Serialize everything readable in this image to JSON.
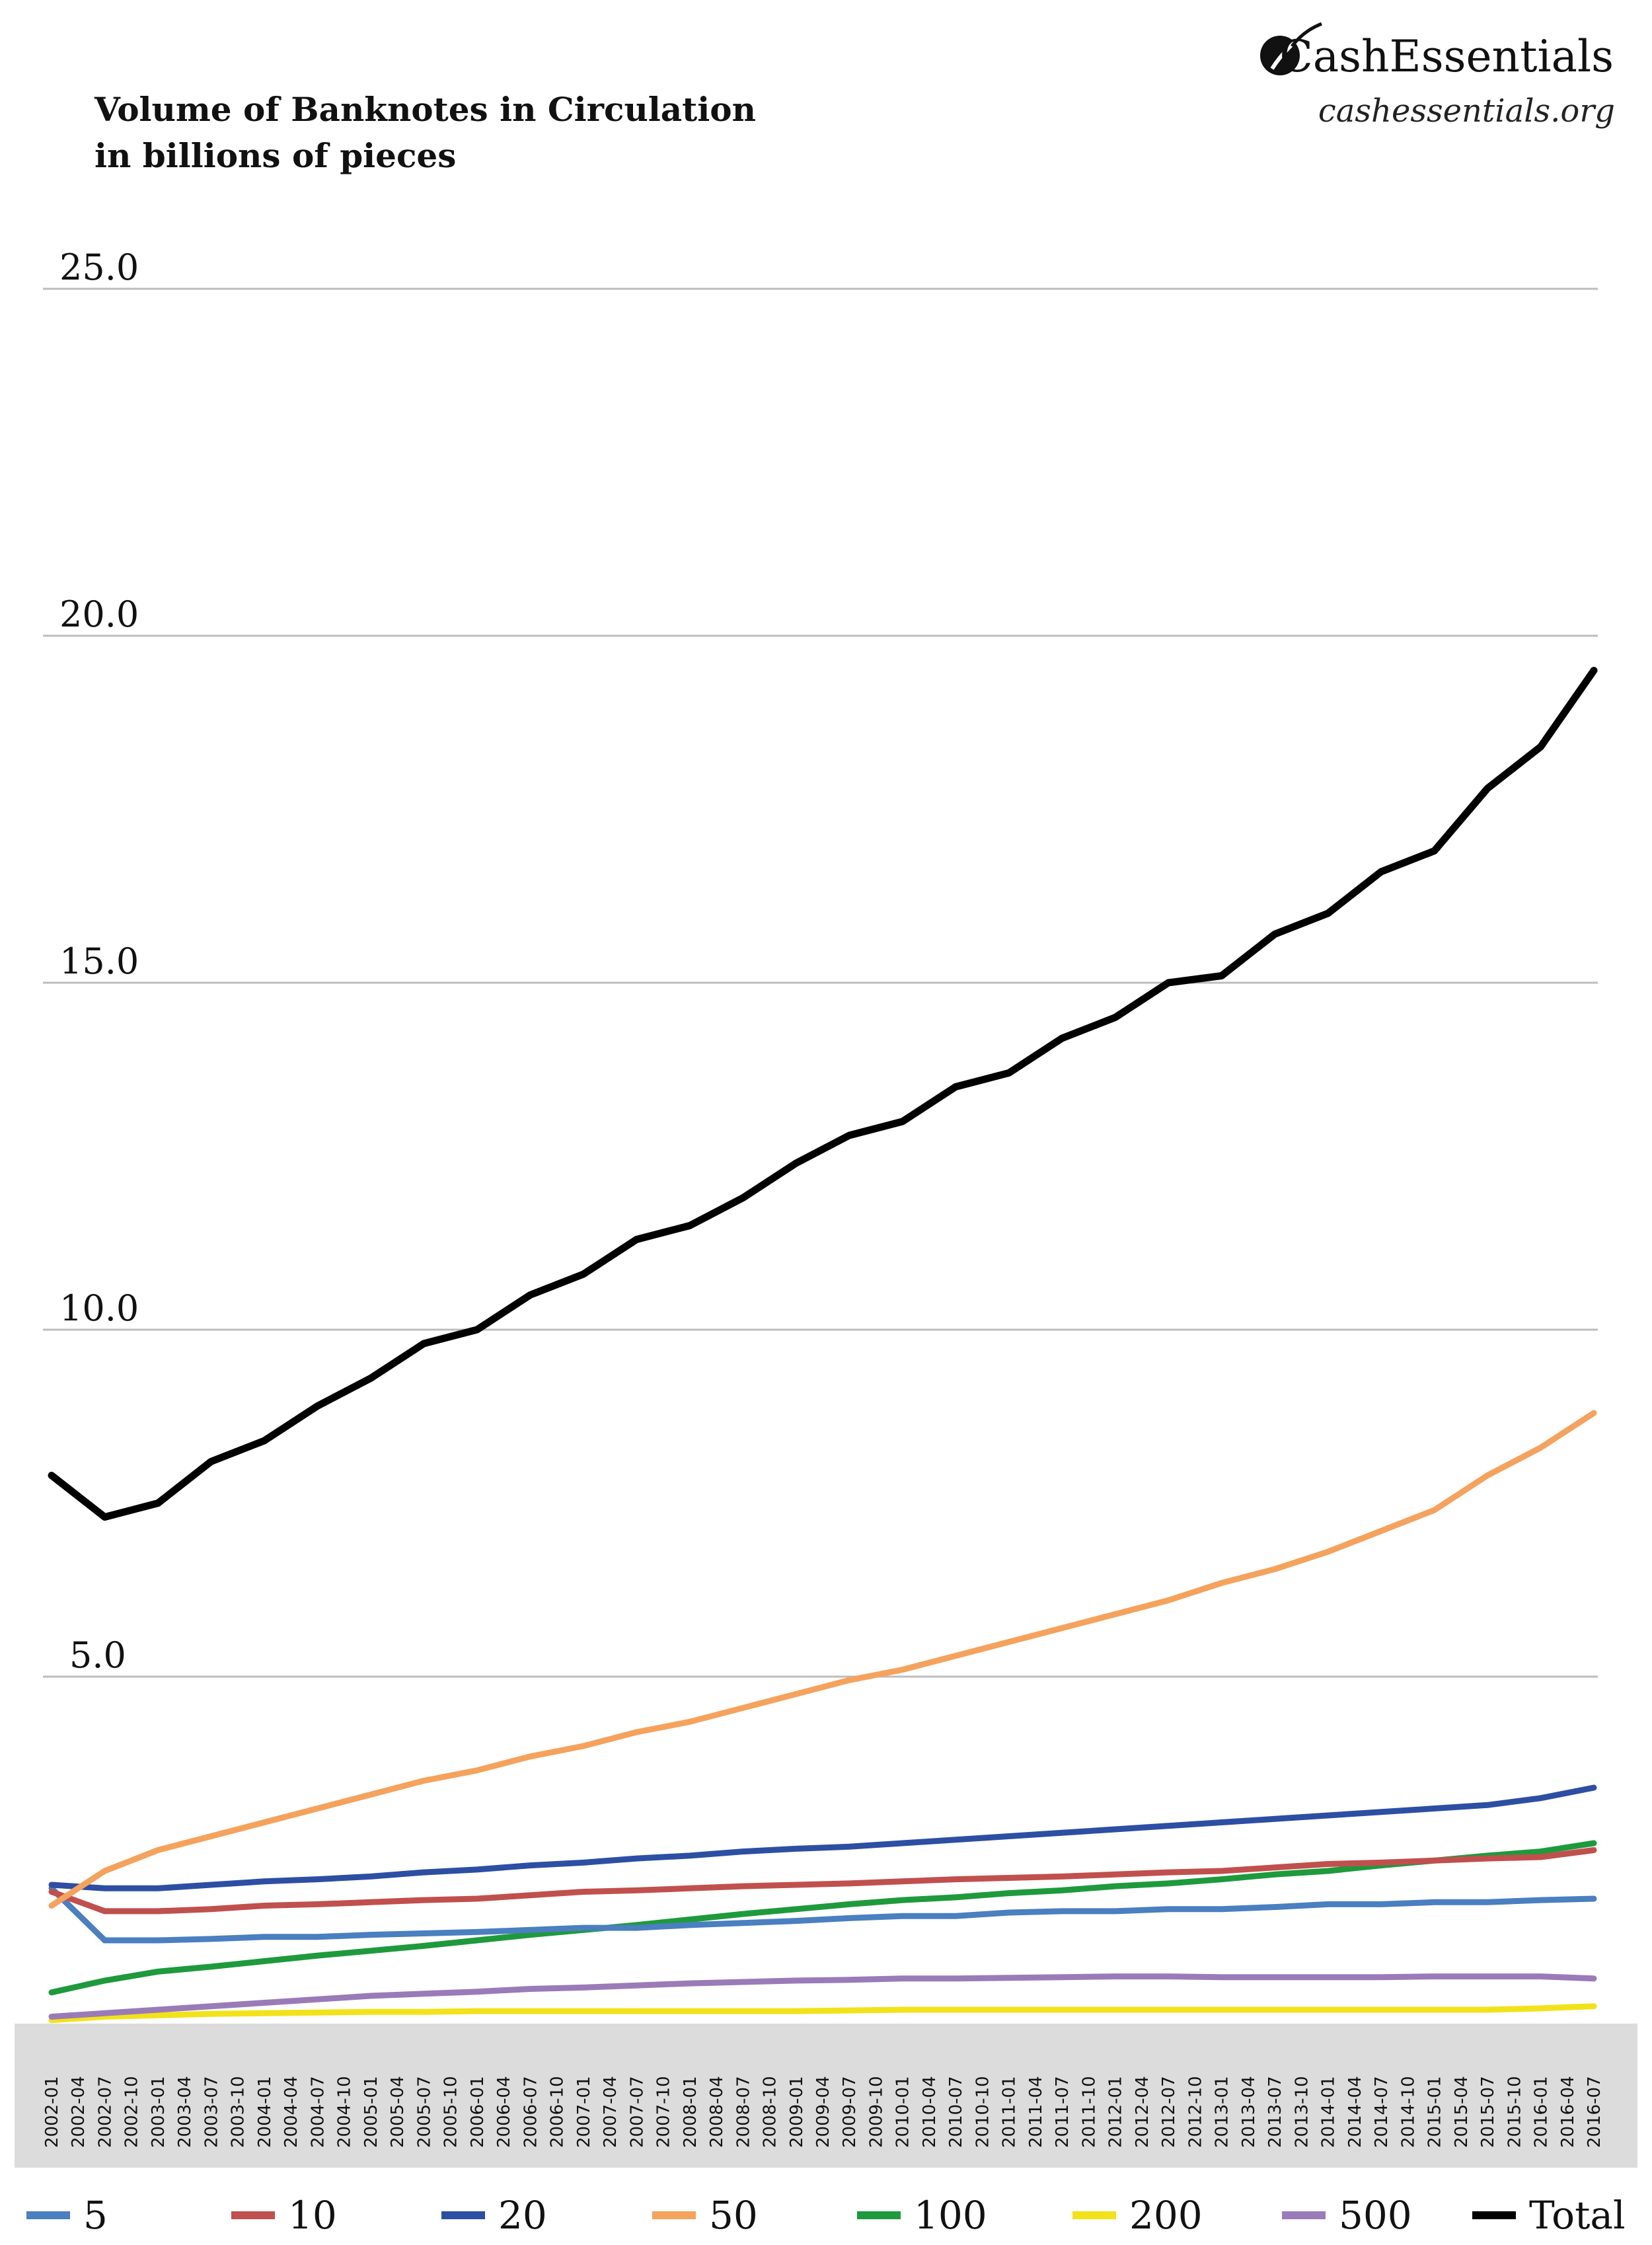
{
  "brand": {
    "name": "CashEssentials",
    "url": "cashessentials.org"
  },
  "chart_data": {
    "type": "line",
    "title": "Volume of Banknotes in Circulation",
    "subtitle": "in billions of pieces",
    "xlabel": "",
    "ylabel": "",
    "ylim": [
      0,
      25
    ],
    "y_ticks": [
      "5.0",
      "10.0",
      "15.0",
      "20.0",
      "25.0"
    ],
    "grid": true,
    "legend_position": "bottom",
    "x_ticks": [
      "2002-01",
      "2002-04",
      "2002-07",
      "2002-10",
      "2003-01",
      "2003-04",
      "2003-07",
      "2003-10",
      "2004-01",
      "2004-04",
      "2004-07",
      "2004-10",
      "2005-01",
      "2005-04",
      "2005-07",
      "2005-10",
      "2006-01",
      "2006-04",
      "2006-07",
      "2006-10",
      "2007-01",
      "2007-04",
      "2007-07",
      "2007-10",
      "2008-01",
      "2008-04",
      "2008-07",
      "2008-10",
      "2009-01",
      "2009-04",
      "2009-07",
      "2009-10",
      "2010-01",
      "2010-04",
      "2010-07",
      "2010-10",
      "2011-01",
      "2011-04",
      "2011-07",
      "2011-10",
      "2012-01",
      "2012-04",
      "2012-07",
      "2012-10",
      "2013-01",
      "2013-04",
      "2013-07",
      "2013-10",
      "2014-01",
      "2014-04",
      "2014-07",
      "2014-10",
      "2015-01",
      "2015-04",
      "2015-07",
      "2015-10",
      "2016-01",
      "2016-04",
      "2016-07"
    ],
    "x": [
      "2002-01",
      "2002-07",
      "2003-01",
      "2003-07",
      "2004-01",
      "2004-07",
      "2005-01",
      "2005-07",
      "2006-01",
      "2006-07",
      "2007-01",
      "2007-07",
      "2008-01",
      "2008-07",
      "2009-01",
      "2009-07",
      "2010-01",
      "2010-07",
      "2011-01",
      "2011-07",
      "2012-01",
      "2012-07",
      "2013-01",
      "2013-07",
      "2014-01",
      "2014-07",
      "2015-01",
      "2015-07",
      "2016-01",
      "2016-07"
    ],
    "series": [
      {
        "name": "5",
        "color": "#4a7fc0",
        "values": [
          1.95,
          1.2,
          1.2,
          1.22,
          1.25,
          1.25,
          1.28,
          1.3,
          1.32,
          1.35,
          1.38,
          1.38,
          1.42,
          1.45,
          1.48,
          1.52,
          1.55,
          1.55,
          1.6,
          1.62,
          1.62,
          1.65,
          1.65,
          1.68,
          1.72,
          1.72,
          1.75,
          1.75,
          1.78,
          1.8
        ]
      },
      {
        "name": "10",
        "color": "#c0504d",
        "values": [
          1.9,
          1.62,
          1.62,
          1.65,
          1.7,
          1.72,
          1.75,
          1.78,
          1.8,
          1.85,
          1.9,
          1.92,
          1.95,
          1.98,
          2.0,
          2.02,
          2.05,
          2.08,
          2.1,
          2.12,
          2.15,
          2.18,
          2.2,
          2.25,
          2.3,
          2.32,
          2.35,
          2.38,
          2.4,
          2.5
        ]
      },
      {
        "name": "20",
        "color": "#2d4fa3",
        "values": [
          2.0,
          1.95,
          1.95,
          2.0,
          2.05,
          2.08,
          2.12,
          2.18,
          2.22,
          2.28,
          2.32,
          2.38,
          2.42,
          2.48,
          2.52,
          2.55,
          2.6,
          2.65,
          2.7,
          2.75,
          2.8,
          2.85,
          2.9,
          2.95,
          3.0,
          3.05,
          3.1,
          3.15,
          3.25,
          3.4
        ]
      },
      {
        "name": "50",
        "color": "#f5a25d",
        "values": [
          1.7,
          2.2,
          2.5,
          2.7,
          2.9,
          3.1,
          3.3,
          3.5,
          3.65,
          3.85,
          4.0,
          4.2,
          4.35,
          4.55,
          4.75,
          4.95,
          5.1,
          5.3,
          5.5,
          5.7,
          5.9,
          6.1,
          6.35,
          6.55,
          6.8,
          7.1,
          7.4,
          7.9,
          8.3,
          8.8
        ]
      },
      {
        "name": "100",
        "color": "#1e9a3d",
        "values": [
          0.45,
          0.62,
          0.75,
          0.82,
          0.9,
          0.98,
          1.05,
          1.12,
          1.2,
          1.28,
          1.35,
          1.42,
          1.5,
          1.58,
          1.65,
          1.72,
          1.78,
          1.82,
          1.88,
          1.92,
          1.98,
          2.02,
          2.08,
          2.15,
          2.2,
          2.28,
          2.35,
          2.42,
          2.48,
          2.6
        ]
      },
      {
        "name": "200",
        "color": "#f2e21a",
        "values": [
          0.05,
          0.1,
          0.12,
          0.14,
          0.15,
          0.16,
          0.17,
          0.17,
          0.18,
          0.18,
          0.18,
          0.18,
          0.18,
          0.18,
          0.18,
          0.19,
          0.2,
          0.2,
          0.2,
          0.2,
          0.2,
          0.2,
          0.2,
          0.2,
          0.2,
          0.2,
          0.2,
          0.2,
          0.22,
          0.25
        ]
      },
      {
        "name": "500",
        "color": "#9a7bb8",
        "values": [
          0.1,
          0.15,
          0.2,
          0.25,
          0.3,
          0.35,
          0.4,
          0.43,
          0.46,
          0.5,
          0.52,
          0.55,
          0.58,
          0.6,
          0.62,
          0.63,
          0.65,
          0.65,
          0.66,
          0.67,
          0.68,
          0.68,
          0.67,
          0.67,
          0.67,
          0.67,
          0.68,
          0.68,
          0.68,
          0.65
        ]
      },
      {
        "name": "Total",
        "color": "#000000",
        "values": [
          7.9,
          7.3,
          7.5,
          8.1,
          8.4,
          8.9,
          9.3,
          9.8,
          10.0,
          10.5,
          10.8,
          11.3,
          11.5,
          11.9,
          12.4,
          12.8,
          13.0,
          13.5,
          13.7,
          14.2,
          14.5,
          15.0,
          15.1,
          15.7,
          16.0,
          16.6,
          16.9,
          17.8,
          18.4,
          19.5
        ]
      }
    ]
  }
}
